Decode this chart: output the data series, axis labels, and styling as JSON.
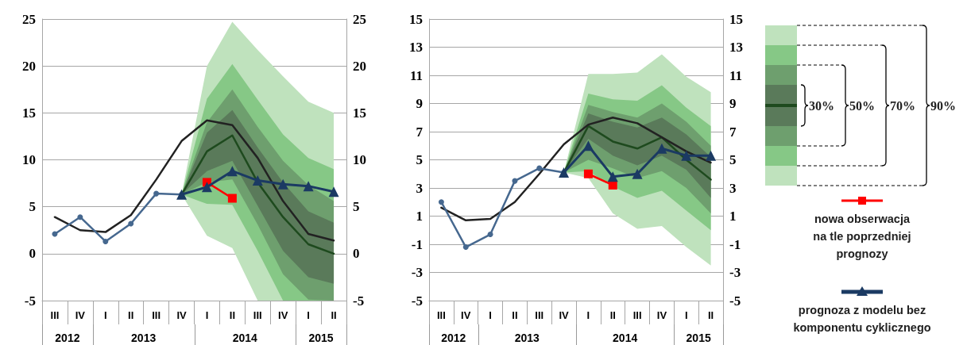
{
  "chart_data": [
    {
      "type": "line",
      "categories": [
        "III",
        "IV",
        "I",
        "II",
        "III",
        "IV",
        "I",
        "II",
        "III",
        "IV",
        "I",
        "II"
      ],
      "annotations": [
        "2012",
        "2013",
        "2014",
        "2015"
      ],
      "ylim": [
        -5,
        25
      ],
      "yticks": [
        -5,
        0,
        5,
        10,
        15,
        20,
        25
      ],
      "y2lim": [
        -5,
        25
      ],
      "y2ticks": [
        -5,
        0,
        5,
        10,
        15,
        20,
        25
      ],
      "grid": "y",
      "series": [
        {
          "color": "#bfe2bd",
          "values": [
            null,
            null,
            null,
            null,
            null,
            null,
            null,
            null,
            null,
            null,
            null,
            null
          ],
          "lower": [
            null,
            null,
            null,
            null,
            null,
            6.3,
            1.9,
            0.6,
            -5,
            -5,
            -5,
            -5
          ],
          "upper": [
            null,
            null,
            null,
            null,
            null,
            6.3,
            20.0,
            24.7,
            21.7,
            18.9,
            16.2,
            15.0
          ]
        },
        {
          "color": "#86c886",
          "values": [
            null,
            null,
            null,
            null,
            null,
            null,
            null,
            null,
            null,
            null,
            null,
            null
          ],
          "lower": [
            null,
            null,
            null,
            null,
            null,
            6.3,
            5.3,
            5.2,
            0.3,
            -5,
            -5,
            -5
          ],
          "upper": [
            null,
            null,
            null,
            null,
            null,
            6.3,
            16.5,
            20.2,
            16.4,
            12.7,
            10.2,
            9.0
          ]
        },
        {
          "color": "#6e9f6e",
          "values": [
            null,
            null,
            null,
            null,
            null,
            null,
            null,
            null,
            null,
            null,
            null,
            null
          ],
          "lower": [
            null,
            null,
            null,
            null,
            null,
            6.3,
            7.6,
            7.9,
            3.1,
            -2.2,
            -4.9,
            -5
          ],
          "upper": [
            null,
            null,
            null,
            null,
            null,
            6.3,
            14.0,
            17.5,
            13.5,
            9.9,
            7.3,
            5.6
          ]
        },
        {
          "color": "#5a7a5a",
          "values": [
            null,
            null,
            null,
            null,
            null,
            null,
            null,
            null,
            null,
            null,
            null,
            null
          ],
          "lower": [
            null,
            null,
            null,
            null,
            null,
            6.3,
            8.8,
            9.9,
            5.1,
            0.3,
            -2.5,
            -3.2
          ],
          "upper": [
            null,
            null,
            null,
            null,
            null,
            6.3,
            12.9,
            15.3,
            11.3,
            7.6,
            4.5,
            3.3
          ]
        },
        {
          "color": "#1e4a1e",
          "marker": "none",
          "values": [
            null,
            null,
            null,
            null,
            null,
            6.3,
            10.9,
            12.6,
            7.6,
            3.9,
            1.0,
            0.0
          ]
        },
        {
          "color": "#222222",
          "marker": "none",
          "values": [
            3.9,
            2.5,
            2.3,
            4.1,
            7.9,
            12.0,
            14.2,
            13.7,
            10.2,
            5.6,
            2.1,
            1.4
          ]
        },
        {
          "color": "#46688f",
          "marker": "circle",
          "values": [
            2.1,
            3.9,
            1.3,
            3.2,
            6.4,
            6.3,
            null,
            null,
            null,
            null,
            null,
            null
          ]
        },
        {
          "color": "#ff0000",
          "marker": "square",
          "values": [
            null,
            null,
            null,
            null,
            null,
            null,
            7.6,
            5.9,
            null,
            null,
            null,
            null
          ]
        },
        {
          "color": "#1b3a63",
          "marker": "triangle",
          "values": [
            null,
            null,
            null,
            null,
            null,
            6.3,
            7.1,
            8.8,
            7.8,
            7.4,
            7.2,
            6.6
          ]
        }
      ]
    },
    {
      "type": "line",
      "categories": [
        "III",
        "IV",
        "I",
        "II",
        "III",
        "IV",
        "I",
        "II",
        "III",
        "IV",
        "I",
        "II"
      ],
      "annotations": [
        "2012",
        "2013",
        "2014",
        "2015",
        "90%",
        "70%",
        "50%",
        "30%"
      ],
      "ylim": [
        -5,
        15
      ],
      "yticks": [
        -5,
        -3,
        -1,
        1,
        3,
        5,
        7,
        9,
        11,
        13,
        15
      ],
      "y2lim": [
        -5,
        15
      ],
      "y2ticks": [
        -5,
        -3,
        -1,
        1,
        3,
        5,
        7,
        9,
        11,
        13,
        15
      ],
      "grid": "y",
      "legend": "right",
      "series": [
        {
          "color": "#bfe2bd",
          "values": [
            null,
            null,
            null,
            null,
            null,
            null,
            null,
            null,
            null,
            null,
            null,
            null
          ],
          "lower": [
            null,
            null,
            null,
            null,
            null,
            4.1,
            3.7,
            1.2,
            0.1,
            0.3,
            -1.2,
            -2.5
          ],
          "upper": [
            null,
            null,
            null,
            null,
            null,
            4.1,
            11.1,
            11.1,
            11.2,
            12.5,
            10.9,
            9.8
          ]
        },
        {
          "color": "#86c886",
          "values": [
            null,
            null,
            null,
            null,
            null,
            null,
            null,
            null,
            null,
            null,
            null,
            null
          ],
          "lower": [
            null,
            null,
            null,
            null,
            null,
            4.1,
            4.2,
            3.1,
            2.3,
            2.8,
            1.4,
            0.0
          ],
          "upper": [
            null,
            null,
            null,
            null,
            null,
            4.1,
            9.7,
            9.3,
            9.2,
            10.3,
            8.7,
            7.4
          ]
        },
        {
          "color": "#6e9f6e",
          "values": [
            null,
            null,
            null,
            null,
            null,
            null,
            null,
            null,
            null,
            null,
            null,
            null
          ],
          "lower": [
            null,
            null,
            null,
            null,
            null,
            4.1,
            5.0,
            4.4,
            3.7,
            4.2,
            3.0,
            1.2
          ],
          "upper": [
            null,
            null,
            null,
            null,
            null,
            4.1,
            8.9,
            8.4,
            8.0,
            9.0,
            7.7,
            6.0
          ]
        },
        {
          "color": "#5a7a5a",
          "values": [
            null,
            null,
            null,
            null,
            null,
            null,
            null,
            null,
            null,
            null,
            null,
            null
          ],
          "lower": [
            null,
            null,
            null,
            null,
            null,
            4.1,
            6.5,
            5.3,
            4.6,
            5.3,
            4.3,
            2.3
          ],
          "upper": [
            null,
            null,
            null,
            null,
            null,
            4.1,
            8.3,
            7.7,
            7.3,
            8.0,
            6.8,
            5.2
          ]
        },
        {
          "color": "#1e4a1e",
          "marker": "none",
          "values": [
            null,
            null,
            null,
            null,
            null,
            4.1,
            7.4,
            6.3,
            5.8,
            6.6,
            5.0,
            3.6
          ]
        },
        {
          "color": "#222222",
          "marker": "none",
          "values": [
            1.6,
            0.7,
            0.8,
            2.0,
            4.0,
            6.1,
            7.5,
            8.0,
            7.6,
            6.6,
            5.6,
            4.8
          ]
        },
        {
          "color": "#46688f",
          "marker": "circle",
          "values": [
            2.0,
            -1.2,
            -0.3,
            3.5,
            4.4,
            4.1,
            null,
            null,
            null,
            null,
            null,
            null
          ]
        },
        {
          "name": "nowa obserwacja na tle poprzedniej prognozy",
          "color": "#ff0000",
          "marker": "square",
          "values": [
            null,
            null,
            null,
            null,
            null,
            null,
            4.0,
            3.2,
            null,
            null,
            null,
            null
          ]
        },
        {
          "name": "prognoza z modelu bez komponentu cyklicznego",
          "color": "#1b3a63",
          "marker": "triangle",
          "values": [
            null,
            null,
            null,
            null,
            null,
            4.1,
            6.0,
            3.8,
            4.0,
            5.8,
            5.3,
            5.3
          ]
        }
      ]
    }
  ]
}
